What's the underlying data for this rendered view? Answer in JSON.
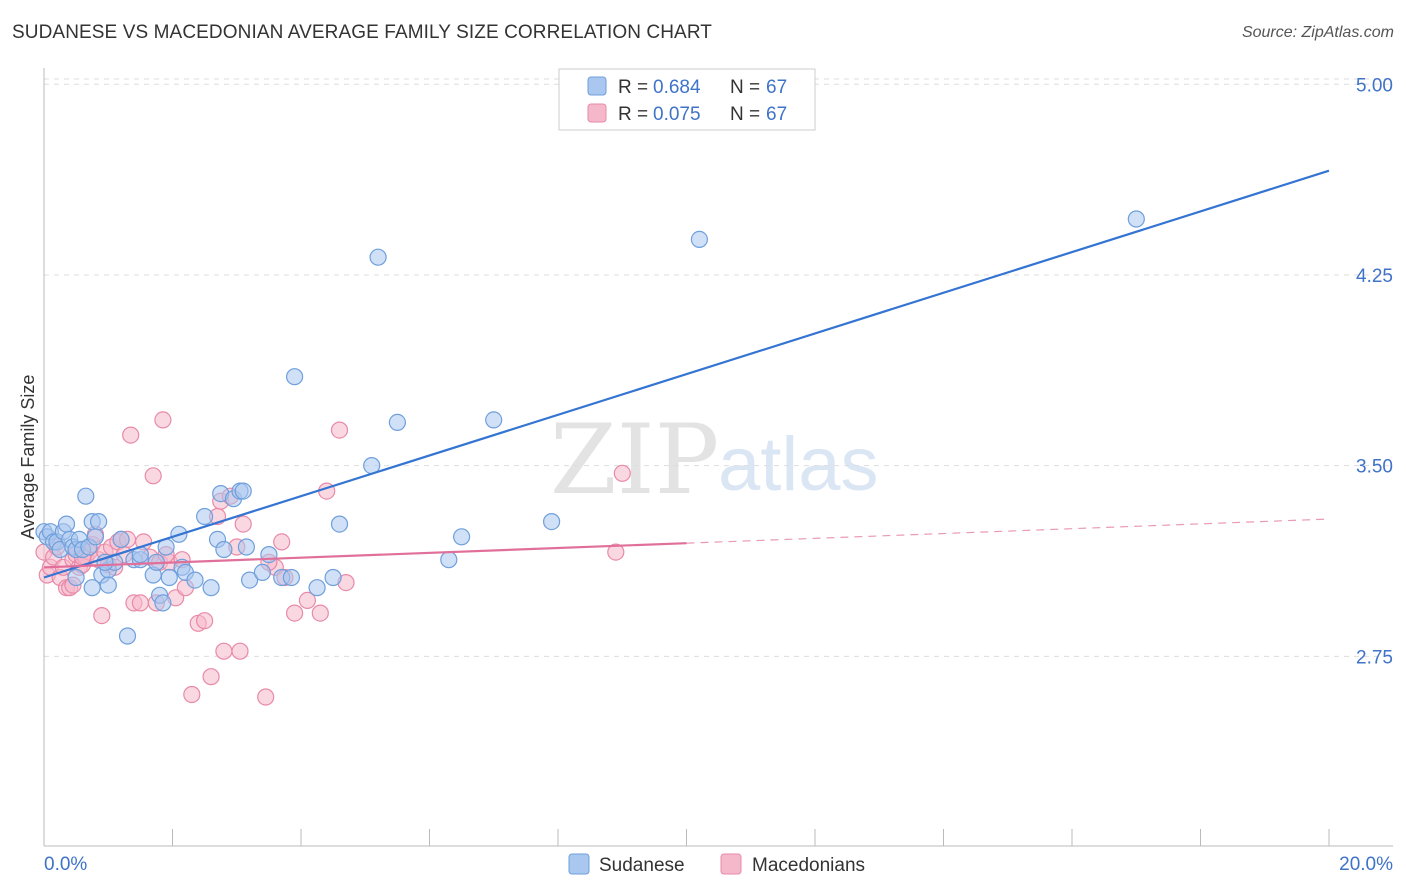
{
  "header": {
    "title": "SUDANESE VS MACEDONIAN AVERAGE FAMILY SIZE CORRELATION CHART",
    "source": "Source: ZipAtlas.com"
  },
  "watermark": {
    "zip": "ZIP",
    "atlas": "atlas"
  },
  "colors": {
    "blue_fill": "#a9c7ef",
    "blue_stroke": "#6f9fdc",
    "blue_line": "#3474d2",
    "pink_fill": "#f5b8cb",
    "pink_stroke": "#e88aa8",
    "pink_line": "#e0709a",
    "accent_text": "#3f73c8"
  },
  "chart_data": {
    "type": "scatter",
    "title": "SUDANESE VS MACEDONIAN AVERAGE FAMILY SIZE CORRELATION CHART",
    "xlabel": "",
    "ylabel": "Average Family Size",
    "xlim": [
      0,
      20
    ],
    "ylim": [
      2.0,
      5.1
    ],
    "x_tick_labels": [
      "0.0%",
      "20.0%"
    ],
    "y_ticks": [
      2.75,
      3.5,
      4.25,
      5.0
    ],
    "y_tick_labels": [
      "2.75",
      "3.50",
      "4.25",
      "5.00"
    ],
    "legend": {
      "rows": [
        {
          "r_label": "R =",
          "r_value": "0.684",
          "n_label": "N =",
          "n_value": "67"
        },
        {
          "r_label": "R =",
          "r_value": "0.075",
          "n_label": "N =",
          "n_value": "67"
        }
      ]
    },
    "series": [
      {
        "name": "Sudanese",
        "color": "#a9c7ef",
        "trend": {
          "x0": 0,
          "y0": 3.06,
          "x1": 20,
          "y1": 4.66,
          "dashed_from": null
        },
        "points": [
          [
            0.0,
            3.24
          ],
          [
            0.05,
            3.22
          ],
          [
            0.1,
            3.24
          ],
          [
            0.15,
            3.2
          ],
          [
            0.2,
            3.2
          ],
          [
            0.25,
            3.17
          ],
          [
            0.3,
            3.24
          ],
          [
            0.35,
            3.27
          ],
          [
            0.4,
            3.21
          ],
          [
            0.45,
            3.18
          ],
          [
            0.5,
            3.06
          ],
          [
            0.5,
            3.17
          ],
          [
            0.55,
            3.21
          ],
          [
            0.6,
            3.17
          ],
          [
            0.65,
            3.38
          ],
          [
            0.7,
            3.18
          ],
          [
            0.75,
            3.28
          ],
          [
            0.8,
            3.22
          ],
          [
            0.85,
            3.28
          ],
          [
            0.9,
            3.07
          ],
          [
            1.0,
            3.09
          ],
          [
            1.0,
            3.03
          ],
          [
            1.3,
            2.83
          ],
          [
            1.1,
            3.12
          ],
          [
            1.4,
            3.13
          ],
          [
            1.5,
            3.13
          ],
          [
            1.5,
            3.15
          ],
          [
            1.7,
            3.07
          ],
          [
            1.75,
            3.12
          ],
          [
            1.8,
            2.99
          ],
          [
            1.85,
            2.96
          ],
          [
            1.9,
            3.18
          ],
          [
            1.95,
            3.06
          ],
          [
            2.15,
            3.1
          ],
          [
            2.1,
            3.23
          ],
          [
            2.2,
            3.08
          ],
          [
            2.35,
            3.05
          ],
          [
            2.5,
            3.3
          ],
          [
            2.6,
            3.02
          ],
          [
            2.7,
            3.21
          ],
          [
            2.75,
            3.39
          ],
          [
            2.95,
            3.37
          ],
          [
            3.05,
            3.4
          ],
          [
            3.1,
            3.4
          ],
          [
            3.15,
            3.18
          ],
          [
            3.2,
            3.05
          ],
          [
            3.4,
            3.08
          ],
          [
            3.5,
            3.15
          ],
          [
            3.7,
            3.06
          ],
          [
            3.85,
            3.06
          ],
          [
            3.9,
            3.85
          ],
          [
            4.25,
            3.02
          ],
          [
            4.5,
            3.06
          ],
          [
            4.6,
            3.27
          ],
          [
            5.1,
            3.5
          ],
          [
            5.2,
            4.32
          ],
          [
            5.5,
            3.67
          ],
          [
            6.3,
            3.13
          ],
          [
            6.5,
            3.22
          ],
          [
            7.0,
            3.68
          ],
          [
            7.9,
            3.28
          ],
          [
            10.2,
            4.39
          ],
          [
            17.0,
            4.47
          ],
          [
            0.75,
            3.02
          ],
          [
            2.8,
            3.17
          ],
          [
            1.2,
            3.21
          ],
          [
            0.95,
            3.12
          ]
        ]
      },
      {
        "name": "Macedonians",
        "color": "#f5b8cb",
        "trend": {
          "x0": 0,
          "y0": 3.1,
          "x1": 20,
          "y1": 3.29,
          "dashed_from": 10.0
        },
        "points": [
          [
            0.0,
            3.16
          ],
          [
            0.05,
            3.07
          ],
          [
            0.1,
            3.1
          ],
          [
            0.15,
            3.14
          ],
          [
            0.2,
            3.18
          ],
          [
            0.25,
            3.06
          ],
          [
            0.3,
            3.1
          ],
          [
            0.35,
            3.02
          ],
          [
            0.4,
            3.02
          ],
          [
            0.45,
            3.13
          ],
          [
            0.5,
            3.15
          ],
          [
            0.55,
            3.1
          ],
          [
            0.6,
            3.11
          ],
          [
            0.65,
            3.14
          ],
          [
            0.7,
            3.16
          ],
          [
            0.75,
            3.19
          ],
          [
            0.8,
            3.23
          ],
          [
            0.85,
            3.13
          ],
          [
            0.9,
            2.91
          ],
          [
            0.95,
            3.16
          ],
          [
            1.0,
            3.11
          ],
          [
            1.05,
            3.18
          ],
          [
            1.1,
            3.1
          ],
          [
            1.15,
            3.2
          ],
          [
            1.2,
            3.21
          ],
          [
            1.25,
            3.15
          ],
          [
            1.3,
            3.21
          ],
          [
            1.35,
            3.62
          ],
          [
            1.4,
            2.96
          ],
          [
            1.5,
            2.96
          ],
          [
            1.55,
            3.2
          ],
          [
            1.65,
            3.14
          ],
          [
            1.7,
            3.46
          ],
          [
            1.75,
            2.96
          ],
          [
            1.8,
            3.12
          ],
          [
            1.85,
            3.68
          ],
          [
            1.95,
            3.12
          ],
          [
            2.05,
            2.98
          ],
          [
            2.15,
            3.13
          ],
          [
            2.2,
            3.02
          ],
          [
            2.3,
            2.6
          ],
          [
            2.4,
            2.88
          ],
          [
            2.5,
            2.89
          ],
          [
            2.6,
            2.67
          ],
          [
            2.7,
            3.3
          ],
          [
            2.75,
            3.36
          ],
          [
            2.8,
            2.77
          ],
          [
            2.9,
            3.38
          ],
          [
            3.0,
            3.18
          ],
          [
            3.05,
            2.77
          ],
          [
            3.1,
            3.27
          ],
          [
            3.45,
            2.59
          ],
          [
            3.6,
            3.1
          ],
          [
            3.7,
            3.2
          ],
          [
            3.75,
            3.06
          ],
          [
            3.9,
            2.92
          ],
          [
            4.1,
            2.97
          ],
          [
            4.3,
            2.92
          ],
          [
            4.4,
            3.4
          ],
          [
            4.6,
            3.64
          ],
          [
            4.7,
            3.04
          ],
          [
            8.9,
            3.16
          ],
          [
            9.0,
            3.47
          ],
          [
            0.6,
            3.14
          ],
          [
            1.9,
            3.15
          ],
          [
            3.5,
            3.12
          ],
          [
            0.45,
            3.03
          ]
        ]
      }
    ]
  }
}
